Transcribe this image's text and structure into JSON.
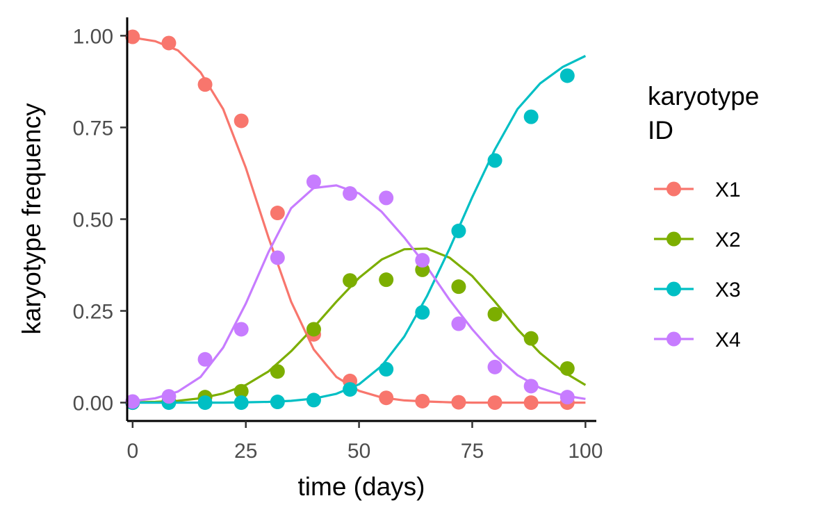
{
  "chart_data": {
    "type": "scatter",
    "title": "",
    "xlabel": "time (days)",
    "ylabel": "karyotype frequency",
    "xlim": [
      -1.2,
      102.4
    ],
    "ylim": [
      -0.05,
      1.05
    ],
    "xticks": [
      0,
      25,
      50,
      75,
      100
    ],
    "xtick_labels": [
      "0",
      "25",
      "50",
      "75",
      "100"
    ],
    "yticks": [
      0,
      0.25,
      0.5,
      0.75,
      1.0
    ],
    "ytick_labels": [
      "0.00",
      "0.25",
      "0.50",
      "0.75",
      "1.00"
    ],
    "grid": false,
    "legend": {
      "title_lines": [
        "karyotype",
        "ID"
      ],
      "placement": "right"
    },
    "series": [
      {
        "name": "X1",
        "color": "#F8766D",
        "points_x": [
          0,
          8,
          16,
          24,
          32,
          40,
          48,
          56,
          64,
          72,
          80,
          88,
          96
        ],
        "points_y": [
          0.997,
          0.98,
          0.867,
          0.768,
          0.517,
          0.186,
          0.059,
          0.013,
          0.004,
          0.001,
          0.0,
          0.0,
          0.0
        ],
        "fit_x": [
          0,
          5,
          10,
          15,
          20,
          25,
          30,
          35,
          40,
          45,
          50,
          55,
          60,
          65,
          70,
          75,
          80,
          85,
          90,
          95,
          100
        ],
        "fit_y": [
          0.995,
          0.985,
          0.96,
          0.9,
          0.8,
          0.64,
          0.45,
          0.275,
          0.145,
          0.07,
          0.032,
          0.014,
          0.006,
          0.003,
          0.001,
          0.0,
          0.0,
          0.0,
          0.0,
          0.0,
          0.0
        ]
      },
      {
        "name": "X2",
        "color": "#7CAE00",
        "points_x": [
          0,
          8,
          16,
          24,
          32,
          40,
          48,
          56,
          64,
          72,
          80,
          88,
          96
        ],
        "points_y": [
          0.0,
          0.003,
          0.015,
          0.031,
          0.085,
          0.2,
          0.333,
          0.335,
          0.362,
          0.316,
          0.241,
          0.175,
          0.093
        ],
        "fit_x": [
          0,
          5,
          10,
          15,
          20,
          25,
          30,
          35,
          40,
          45,
          50,
          55,
          60,
          65,
          70,
          75,
          80,
          85,
          90,
          95,
          100
        ],
        "fit_y": [
          0.001,
          0.002,
          0.005,
          0.012,
          0.025,
          0.048,
          0.085,
          0.14,
          0.205,
          0.275,
          0.34,
          0.39,
          0.418,
          0.42,
          0.395,
          0.345,
          0.275,
          0.2,
          0.135,
          0.085,
          0.048
        ]
      },
      {
        "name": "X3",
        "color": "#00BFC4",
        "points_x": [
          0,
          8,
          16,
          24,
          32,
          40,
          48,
          56,
          64,
          72,
          80,
          88,
          96
        ],
        "points_y": [
          0.0,
          0.0,
          0.0,
          0.0,
          0.002,
          0.007,
          0.036,
          0.091,
          0.246,
          0.468,
          0.66,
          0.779,
          0.891
        ],
        "fit_x": [
          0,
          5,
          10,
          15,
          20,
          25,
          30,
          35,
          40,
          45,
          50,
          55,
          60,
          65,
          70,
          75,
          80,
          85,
          90,
          95,
          100
        ],
        "fit_y": [
          0.0,
          0.0,
          0.0,
          0.0,
          0.0,
          0.001,
          0.002,
          0.005,
          0.011,
          0.024,
          0.05,
          0.1,
          0.18,
          0.29,
          0.42,
          0.56,
          0.69,
          0.8,
          0.87,
          0.915,
          0.945
        ]
      },
      {
        "name": "X4",
        "color": "#C77CFF",
        "points_x": [
          0,
          8,
          16,
          24,
          32,
          40,
          48,
          56,
          64,
          72,
          80,
          88,
          96
        ],
        "points_y": [
          0.003,
          0.017,
          0.118,
          0.2,
          0.395,
          0.602,
          0.57,
          0.558,
          0.388,
          0.215,
          0.097,
          0.045,
          0.015
        ],
        "fit_x": [
          0,
          5,
          10,
          15,
          20,
          25,
          30,
          35,
          40,
          45,
          50,
          55,
          60,
          65,
          70,
          75,
          80,
          85,
          90,
          95,
          100
        ],
        "fit_y": [
          0.004,
          0.012,
          0.03,
          0.07,
          0.15,
          0.27,
          0.41,
          0.53,
          0.585,
          0.592,
          0.57,
          0.52,
          0.45,
          0.37,
          0.28,
          0.2,
          0.13,
          0.075,
          0.04,
          0.02,
          0.01
        ]
      }
    ]
  }
}
